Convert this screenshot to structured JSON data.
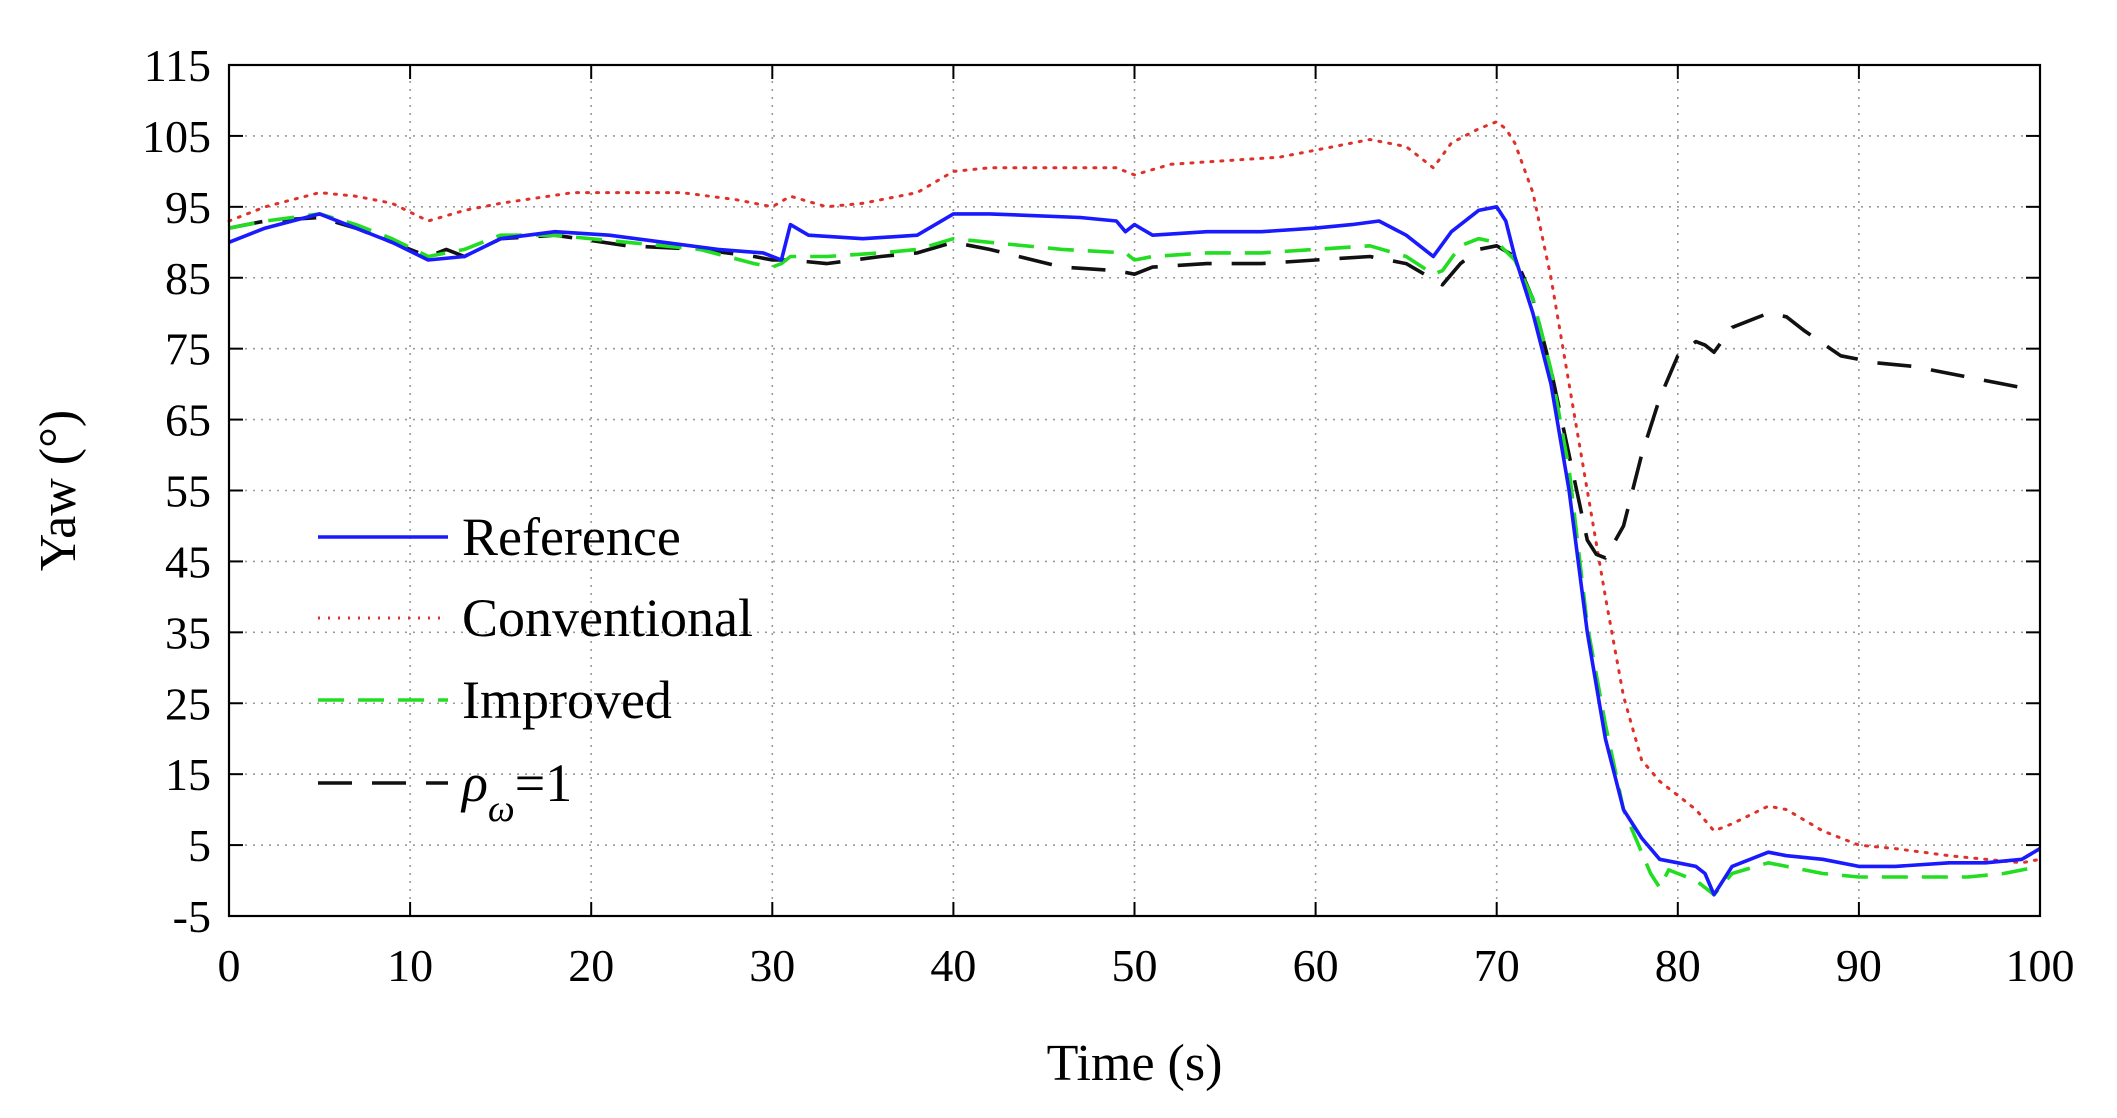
{
  "chart_data": {
    "type": "line",
    "title": "",
    "xlabel": "Time (s)",
    "ylabel": "Yaw (°)",
    "xlim": [
      0,
      100
    ],
    "ylim": [
      -5,
      115
    ],
    "xticks": [
      0,
      10,
      20,
      30,
      40,
      50,
      60,
      70,
      80,
      90,
      100
    ],
    "yticks": [
      -5,
      5,
      15,
      25,
      35,
      45,
      55,
      65,
      75,
      85,
      95,
      105,
      115
    ],
    "grid": true,
    "legend_position": "left-lower",
    "series": [
      {
        "name": "Reference",
        "color": "#1a1aff",
        "style": "solid",
        "x": [
          0,
          2,
          5,
          7,
          9,
          11,
          13,
          15,
          18,
          21,
          24,
          27,
          29.5,
          30.5,
          31,
          32,
          35,
          38,
          40,
          42,
          47,
          49,
          49.5,
          50,
          51,
          54,
          57,
          60,
          62,
          63.5,
          65,
          66.5,
          67.5,
          69,
          70,
          70.5,
          71,
          72,
          73,
          74,
          74.5,
          75,
          76,
          77,
          78,
          79,
          80,
          81,
          81.5,
          82,
          83,
          85,
          86,
          88,
          90,
          92,
          95,
          97,
          99,
          100
        ],
        "y": [
          90,
          92,
          94,
          92,
          90,
          87.5,
          88,
          90.5,
          91.5,
          91,
          90,
          89,
          88.5,
          87.5,
          92.5,
          91,
          90.5,
          91,
          94,
          94,
          93.5,
          93,
          91.5,
          92.5,
          91,
          91.5,
          91.5,
          92,
          92.5,
          93,
          91,
          88,
          91.5,
          94.5,
          95,
          93,
          88,
          80,
          70,
          55,
          45,
          35,
          20,
          10,
          6,
          3,
          2.5,
          2,
          1,
          -2,
          2,
          4,
          3.5,
          3,
          2,
          2,
          2.5,
          2.5,
          3,
          4.5
        ]
      },
      {
        "name": "Conventional",
        "color": "#e0302a",
        "style": "dotted",
        "x": [
          0,
          2,
          5,
          7,
          9,
          11,
          13,
          15,
          19,
          22,
          25,
          28,
          30,
          31,
          33,
          35,
          38,
          40,
          42,
          46,
          49,
          50,
          52,
          55,
          58,
          61,
          63,
          65,
          66.5,
          67.5,
          69,
          70,
          70.5,
          71,
          72,
          73,
          74,
          75,
          76,
          77,
          78,
          79,
          80,
          81,
          82,
          83,
          85,
          86,
          88,
          90,
          92,
          95,
          97,
          99,
          100
        ],
        "y": [
          93,
          95,
          97,
          96.5,
          95.5,
          93,
          94.5,
          95.5,
          97,
          97,
          97,
          96,
          95,
          96.5,
          95,
          95.5,
          97,
          100,
          100.5,
          100.5,
          100.5,
          99.5,
          101,
          101.5,
          102,
          103.5,
          104.5,
          103.5,
          100.5,
          104,
          106,
          107,
          106,
          104,
          97,
          85,
          70,
          55,
          40,
          26,
          17,
          14,
          12,
          10,
          7,
          8,
          10.5,
          10,
          7,
          5,
          4.5,
          3.5,
          3,
          2.5,
          3
        ]
      },
      {
        "name": "Improved",
        "color": "#22dd22",
        "style": "dashed",
        "x": [
          0,
          2,
          5,
          7,
          9,
          11,
          13,
          15,
          18,
          22,
          26,
          29,
          30,
          30.5,
          31,
          33,
          36,
          38,
          40,
          42,
          46,
          49.5,
          50,
          51,
          54,
          57,
          60,
          63,
          65,
          66.5,
          67,
          68,
          69,
          70,
          71,
          72,
          73,
          74,
          74.5,
          75,
          76,
          77,
          78,
          78.5,
          79,
          79.5,
          80,
          81,
          81.5,
          82,
          83,
          85,
          86,
          88,
          90,
          93,
          96,
          98,
          100
        ],
        "y": [
          92,
          93,
          94,
          92.5,
          90.5,
          88,
          89,
          91,
          91,
          90,
          89,
          87,
          86.5,
          87,
          88,
          88,
          88.5,
          89,
          90.5,
          90,
          89,
          88.5,
          87.5,
          88,
          88.5,
          88.5,
          89,
          89.5,
          88,
          85.5,
          86,
          89.5,
          90.5,
          90,
          87.5,
          82,
          72,
          58,
          47,
          36,
          22,
          10,
          4,
          1,
          -1,
          1.5,
          1,
          0,
          -1,
          -2,
          1,
          2.5,
          2,
          1,
          0.5,
          0.5,
          0.5,
          1,
          2
        ]
      },
      {
        "name": "ρω=1",
        "name_base": "ρ",
        "name_sub": "ω",
        "name_suffix": "=1",
        "color": "#111111",
        "style": "longdash",
        "x": [
          0,
          2,
          5,
          7,
          9,
          11,
          12,
          13,
          15,
          18,
          22,
          26,
          29,
          30,
          31,
          33,
          36,
          38,
          40,
          42,
          46,
          49,
          50,
          51,
          54,
          57,
          60,
          63,
          65,
          66,
          67,
          68,
          69,
          70,
          71,
          72,
          73,
          74,
          75,
          75.5,
          76,
          77,
          78,
          79,
          80,
          81,
          81.5,
          82,
          83,
          84,
          85,
          86,
          87,
          89,
          91,
          93,
          95,
          97,
          98,
          99,
          99.5
        ],
        "y": [
          92,
          93,
          93.5,
          92,
          90,
          88,
          89,
          88,
          90.5,
          91,
          89.5,
          89,
          88,
          87.5,
          87.5,
          87,
          88,
          88.5,
          90,
          89,
          86.5,
          86,
          85.5,
          86.5,
          87,
          87,
          87.5,
          88,
          87,
          85.5,
          84,
          87,
          89,
          89.5,
          88,
          82,
          72,
          60,
          48,
          46,
          45.5,
          50,
          60,
          68,
          74,
          76,
          75.5,
          74.5,
          78,
          79,
          80,
          79.5,
          77.5,
          74,
          73,
          72.5,
          71.5,
          70.5,
          70,
          69.5,
          71
        ]
      }
    ]
  }
}
